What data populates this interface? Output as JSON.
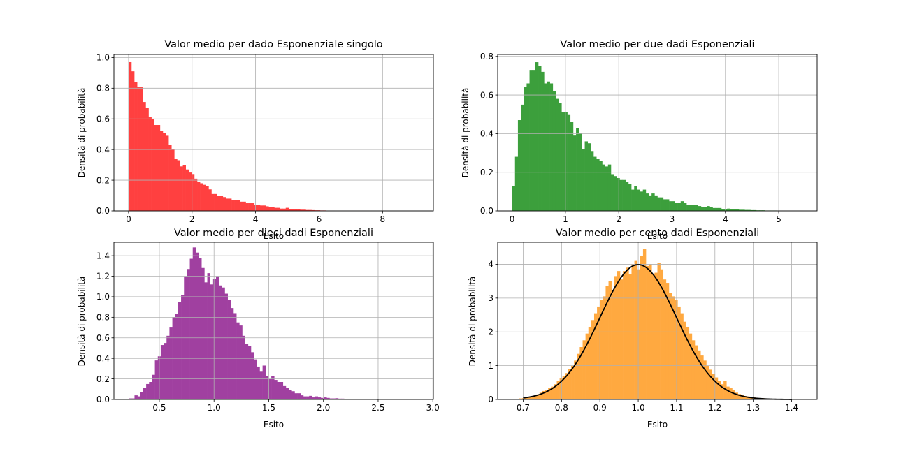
{
  "chart_data": [
    {
      "type": "bar",
      "title": "Valor medio per dado Esponenziale singolo",
      "xlabel": "Esito",
      "ylabel": "Densità di probabilità",
      "xlim": [
        -0.46,
        9.6
      ],
      "ylim": [
        0,
        1.02
      ],
      "xticks": [
        0,
        2,
        4,
        6,
        8
      ],
      "yticks": [
        0.0,
        0.2,
        0.4,
        0.6,
        0.8,
        1.0
      ],
      "tick_decimals": {
        "x": 0,
        "y": 1
      },
      "grid": true,
      "color": "#ff4040",
      "bin_start": 0.0,
      "bin_width": 0.09,
      "values": [
        0.97,
        0.91,
        0.84,
        0.81,
        0.81,
        0.71,
        0.67,
        0.61,
        0.6,
        0.56,
        0.56,
        0.52,
        0.51,
        0.49,
        0.43,
        0.4,
        0.34,
        0.33,
        0.29,
        0.3,
        0.27,
        0.25,
        0.24,
        0.21,
        0.19,
        0.18,
        0.17,
        0.16,
        0.14,
        0.11,
        0.11,
        0.1,
        0.1,
        0.09,
        0.08,
        0.08,
        0.07,
        0.07,
        0.07,
        0.06,
        0.06,
        0.05,
        0.05,
        0.05,
        0.04,
        0.04,
        0.035,
        0.035,
        0.03,
        0.025,
        0.025,
        0.02,
        0.02,
        0.015,
        0.015,
        0.02,
        0.012,
        0.012,
        0.01,
        0.01,
        0.008,
        0.008,
        0.006,
        0.006,
        0.005,
        0.004,
        0.004,
        0.003,
        0.003,
        0.002,
        0.002,
        0.002,
        0.0015,
        0.0015,
        0.001,
        0.001,
        0.001,
        0.001,
        0.0008,
        0.0008,
        0.0006,
        0.0006,
        0.0005,
        0.0005,
        0.0004,
        0.0004,
        0.0003,
        0.0003,
        0.0002,
        0.0002,
        0.0002,
        0.0001,
        0.0001,
        0.0001,
        0.0001,
        0.0001,
        0.0001,
        0.0001,
        0.0001,
        0.0001
      ]
    },
    {
      "type": "bar",
      "title": "Valor medio per due dadi Esponenziali",
      "xlabel": "Esito",
      "ylabel": "Densità di probabilità",
      "xlim": [
        -0.27,
        5.72
      ],
      "ylim": [
        0,
        0.81
      ],
      "xticks": [
        0,
        1,
        2,
        3,
        4,
        5
      ],
      "yticks": [
        0.0,
        0.2,
        0.4,
        0.6,
        0.8
      ],
      "tick_decimals": {
        "x": 0,
        "y": 1
      },
      "grid": true,
      "color": "#3c9f3c",
      "bin_start": 0.0,
      "bin_width": 0.0545,
      "values": [
        0.13,
        0.28,
        0.47,
        0.55,
        0.64,
        0.66,
        0.73,
        0.73,
        0.77,
        0.75,
        0.72,
        0.66,
        0.67,
        0.66,
        0.62,
        0.58,
        0.56,
        0.51,
        0.51,
        0.5,
        0.46,
        0.39,
        0.43,
        0.4,
        0.32,
        0.36,
        0.35,
        0.31,
        0.28,
        0.27,
        0.26,
        0.24,
        0.23,
        0.24,
        0.19,
        0.18,
        0.17,
        0.16,
        0.16,
        0.15,
        0.14,
        0.11,
        0.13,
        0.11,
        0.1,
        0.11,
        0.09,
        0.08,
        0.09,
        0.08,
        0.07,
        0.07,
        0.06,
        0.06,
        0.05,
        0.05,
        0.04,
        0.04,
        0.05,
        0.04,
        0.03,
        0.03,
        0.03,
        0.03,
        0.025,
        0.02,
        0.02,
        0.025,
        0.02,
        0.015,
        0.015,
        0.015,
        0.01,
        0.01,
        0.012,
        0.01,
        0.008,
        0.008,
        0.006,
        0.006,
        0.005,
        0.005,
        0.004,
        0.004,
        0.003,
        0.003,
        0.003,
        0.002,
        0.002,
        0.002,
        0.002,
        0.001,
        0.001,
        0.001,
        0.001,
        0.001,
        0.001,
        0.001,
        0.001,
        0.001
      ]
    },
    {
      "type": "bar",
      "title": "Valor medio per dieci dadi Esponenziali",
      "xlabel": "Esito",
      "ylabel": "Densità di probabilità",
      "xlim": [
        0.085,
        3.005
      ],
      "ylim": [
        0,
        1.53
      ],
      "xticks": [
        0.5,
        1.0,
        1.5,
        2.0,
        2.5,
        3.0
      ],
      "yticks": [
        0.0,
        0.2,
        0.4,
        0.6,
        0.8,
        1.0,
        1.2,
        1.4
      ],
      "tick_decimals": {
        "x": 1,
        "y": 1
      },
      "grid": true,
      "color": "#a040a0",
      "bin_start": 0.22,
      "bin_width": 0.0266,
      "values": [
        0.01,
        0.01,
        0.04,
        0.03,
        0.07,
        0.11,
        0.15,
        0.17,
        0.24,
        0.38,
        0.42,
        0.53,
        0.55,
        0.62,
        0.7,
        0.8,
        0.83,
        0.95,
        1.02,
        1.2,
        1.27,
        1.37,
        1.48,
        1.43,
        1.38,
        1.28,
        1.14,
        1.23,
        1.12,
        1.17,
        1.2,
        1.11,
        1.09,
        1.03,
        0.97,
        0.89,
        0.84,
        0.75,
        0.72,
        0.62,
        0.54,
        0.52,
        0.46,
        0.39,
        0.32,
        0.27,
        0.33,
        0.23,
        0.2,
        0.23,
        0.19,
        0.17,
        0.17,
        0.13,
        0.11,
        0.09,
        0.08,
        0.06,
        0.06,
        0.04,
        0.03,
        0.03,
        0.035,
        0.02,
        0.03,
        0.02,
        0.015,
        0.02,
        0.015,
        0.01,
        0.01,
        0.012,
        0.008,
        0.008,
        0.006,
        0.006,
        0.005,
        0.005,
        0.004,
        0.004,
        0.003,
        0.003,
        0.003,
        0.002,
        0.002,
        0.002,
        0.002,
        0.002,
        0.001,
        0.001,
        0.001,
        0.001,
        0.001,
        0.001,
        0.001,
        0.001,
        0.001,
        0.001,
        0.001,
        0.001
      ]
    },
    {
      "type": "bar",
      "title": "Valor medio per cento dadi Esponenziali",
      "xlabel": "Esito",
      "ylabel": "Densità di probabilità",
      "xlim": [
        0.6335,
        1.4665
      ],
      "ylim": [
        0,
        4.65
      ],
      "xticks": [
        0.7,
        0.8,
        0.9,
        1.0,
        1.1,
        1.2,
        1.3,
        1.4
      ],
      "yticks": [
        0,
        1,
        2,
        3,
        4
      ],
      "tick_decimals": {
        "x": 1,
        "y": 0
      },
      "grid": true,
      "color": "#ffa940",
      "bin_start": 0.69,
      "bin_width": 0.0075,
      "values": [
        0.03,
        0.04,
        0.06,
        0.07,
        0.1,
        0.12,
        0.15,
        0.2,
        0.25,
        0.28,
        0.35,
        0.38,
        0.45,
        0.55,
        0.62,
        0.7,
        0.78,
        0.9,
        1.0,
        1.15,
        1.35,
        1.55,
        1.75,
        1.95,
        2.15,
        2.35,
        2.55,
        2.75,
        2.95,
        3.05,
        3.35,
        3.5,
        3.2,
        3.65,
        3.8,
        3.55,
        3.8,
        3.9,
        3.7,
        4.0,
        4.1,
        3.85,
        4.25,
        4.45,
        3.95,
        4.0,
        3.7,
        3.75,
        4.05,
        3.85,
        3.55,
        3.45,
        3.15,
        3.05,
        2.95,
        2.75,
        2.55,
        2.3,
        2.15,
        1.95,
        1.75,
        1.6,
        1.45,
        1.3,
        1.15,
        1.0,
        0.88,
        0.75,
        0.65,
        0.55,
        0.45,
        0.55,
        0.38,
        0.33,
        0.27,
        0.2,
        0.16,
        0.13,
        0.1,
        0.09,
        0.08,
        0.06,
        0.05,
        0.04,
        0.04,
        0.03,
        0.02,
        0.02,
        0.02,
        0.015,
        0.01,
        0.01,
        0.008,
        0.006,
        0.005,
        0.004,
        0.003,
        0.002,
        0.001,
        0.001
      ],
      "overlay_curve": {
        "type": "normal_pdf",
        "mean": 1.0,
        "std": 0.1,
        "x_range": [
          0.7,
          1.4
        ],
        "color": "#000000"
      }
    }
  ]
}
